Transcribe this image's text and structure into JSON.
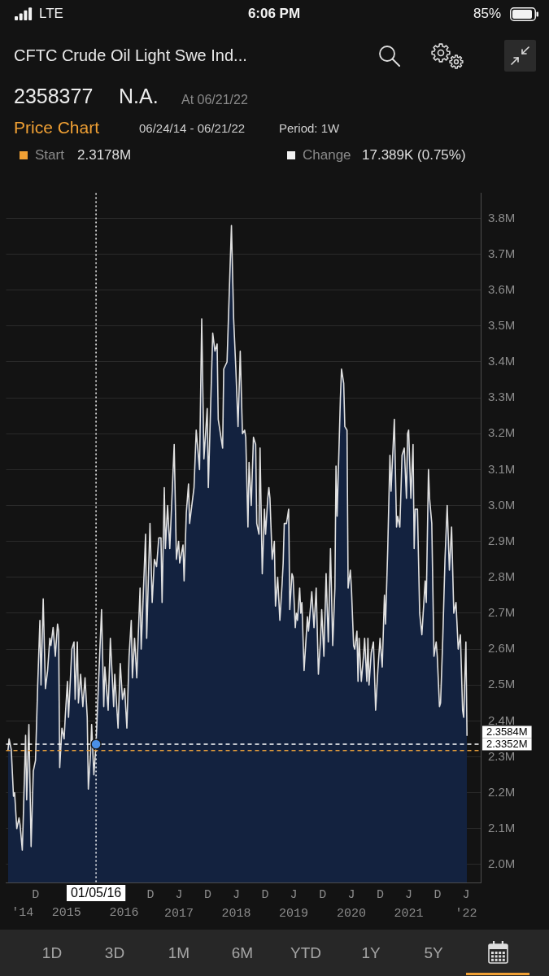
{
  "chart_data": {
    "type": "area",
    "title": "CFTC Crude Oil Light Swe Ind...",
    "subtitle": "Price Chart",
    "annotations": [
      "LTE",
      "6:06 PM",
      "85%",
      "2358377",
      "N.A.",
      "At 06/21/22",
      "06/24/14 - 06/21/22",
      "Period: 1W",
      "Start",
      "2.3178M",
      "Change",
      "17.389K (0.75%)",
      "1D",
      "3D",
      "1M",
      "6M",
      "YTD",
      "1Y",
      "5Y"
    ],
    "xlim": [
      "2014-06-12",
      "2022-09-16"
    ],
    "xticks": [
      {
        "value": "2014-12-16",
        "label": "D"
      },
      {
        "value": "2016-12-16",
        "label": "D"
      },
      {
        "value": "2017-06-15",
        "label": "J\n2017"
      },
      {
        "value": "2017-12-16",
        "label": "D"
      },
      {
        "value": "2018-06-15",
        "label": "J\n2018"
      },
      {
        "value": "2018-12-16",
        "label": "D"
      },
      {
        "value": "2019-06-15",
        "label": "J\n2019"
      },
      {
        "value": "2019-12-16",
        "label": "D"
      },
      {
        "value": "2020-06-15",
        "label": "J\n2020"
      },
      {
        "value": "2020-12-16",
        "label": "D"
      },
      {
        "value": "2021-06-15",
        "label": "J\n2021"
      },
      {
        "value": "2021-12-16",
        "label": "D"
      },
      {
        "value": "2022-06-15",
        "label": "J\n'22"
      }
    ],
    "x2lim": [
      "2014-06-12",
      "2022-09-16"
    ],
    "x2ticks": [
      {
        "value": "2014-09-25",
        "label": "'14"
      },
      {
        "value": "2015-07-01",
        "label": "2015"
      },
      {
        "value": "2016-07-01",
        "label": "2016"
      }
    ],
    "ylim": [
      1.95,
      3.87
    ],
    "yticks": [
      {
        "value": 2.0,
        "label": "2.0M"
      },
      {
        "value": 2.1,
        "label": "2.1M"
      },
      {
        "value": 2.2,
        "label": "2.2M"
      },
      {
        "value": 2.3,
        "label": "2.3M"
      },
      {
        "value": 2.4,
        "label": "2.4M"
      },
      {
        "value": 2.5,
        "label": "2.5M"
      },
      {
        "value": 2.6,
        "label": "2.6M"
      },
      {
        "value": 2.7,
        "label": "2.7M"
      },
      {
        "value": 2.8,
        "label": "2.8M"
      },
      {
        "value": 2.9,
        "label": "2.9M"
      },
      {
        "value": 3.0,
        "label": "3.0M"
      },
      {
        "value": 3.1,
        "label": "3.1M"
      },
      {
        "value": 3.2,
        "label": "3.2M"
      },
      {
        "value": 3.3,
        "label": "3.3M"
      },
      {
        "value": 3.4,
        "label": "3.4M"
      },
      {
        "value": 3.5,
        "label": "3.5M"
      },
      {
        "value": 3.6,
        "label": "3.6M"
      },
      {
        "value": 3.7,
        "label": "3.7M"
      },
      {
        "value": 3.8,
        "label": "3.8M"
      }
    ],
    "grid": "y",
    "series": [
      {
        "color": "#13223f",
        "x": [
          "2014-06-24",
          "2014-07-01",
          "2014-07-15",
          "2014-07-29",
          "2014-08-05",
          "2014-08-19",
          "2014-09-02",
          "2014-09-09",
          "2014-09-23",
          "2014-09-30",
          "2014-10-14",
          "2014-10-21",
          "2014-11-04",
          "2014-11-18",
          "2014-12-02",
          "2014-12-16",
          "2014-12-30",
          "2015-01-13",
          "2015-01-20",
          "2015-02-03",
          "2015-02-17",
          "2015-03-03",
          "2015-03-17",
          "2015-03-24",
          "2015-04-07",
          "2015-04-21",
          "2015-05-05",
          "2015-05-12",
          "2015-05-19",
          "2015-06-02",
          "2015-06-16",
          "2015-06-23",
          "2015-07-07",
          "2015-07-14",
          "2015-08-04",
          "2015-08-18",
          "2015-08-25",
          "2015-09-08",
          "2015-09-15",
          "2015-09-29",
          "2015-10-13",
          "2015-10-27",
          "2015-11-10",
          "2015-11-17",
          "2015-12-01",
          "2015-12-08",
          "2015-12-22",
          "2016-01-05",
          "2016-02-09",
          "2016-02-23",
          "2016-03-01",
          "2016-03-22",
          "2016-04-05",
          "2016-04-26",
          "2016-05-03",
          "2016-05-24",
          "2016-06-07",
          "2016-06-21",
          "2016-07-05",
          "2016-07-19",
          "2016-08-02",
          "2016-08-16",
          "2016-08-23",
          "2016-09-06",
          "2016-09-20",
          "2016-09-27",
          "2016-10-11",
          "2016-10-18",
          "2016-11-15",
          "2016-11-22",
          "2016-12-13",
          "2016-12-27",
          "2017-01-10",
          "2017-01-24",
          "2017-02-07",
          "2017-02-21",
          "2017-02-28",
          "2017-03-14",
          "2017-03-21",
          "2017-04-04",
          "2017-04-18",
          "2017-05-16",
          "2017-05-30",
          "2017-06-13",
          "2017-06-20",
          "2017-07-11",
          "2017-07-18",
          "2017-08-01",
          "2017-08-15",
          "2017-08-22",
          "2017-09-19",
          "2017-10-03",
          "2017-10-24",
          "2017-11-07",
          "2017-11-21",
          "2017-12-12",
          "2017-12-19",
          "2018-01-16",
          "2018-01-30",
          "2018-02-13",
          "2018-02-20",
          "2018-03-20",
          "2018-03-27",
          "2018-04-17",
          "2018-05-15",
          "2018-05-29",
          "2018-06-12",
          "2018-06-26",
          "2018-07-10",
          "2018-07-24",
          "2018-08-07",
          "2018-08-14",
          "2018-08-28",
          "2018-09-04",
          "2018-09-18",
          "2018-10-02",
          "2018-10-16",
          "2018-10-23",
          "2018-11-06",
          "2018-11-13",
          "2018-11-27",
          "2018-12-11",
          "2018-12-18",
          "2019-01-01",
          "2019-01-08",
          "2019-01-15",
          "2019-01-29",
          "2019-02-12",
          "2019-02-19",
          "2019-03-05",
          "2019-03-19",
          "2019-04-02",
          "2019-04-09",
          "2019-04-16",
          "2019-04-30",
          "2019-05-14",
          "2019-05-21",
          "2019-06-04",
          "2019-06-11",
          "2019-06-25",
          "2019-07-02",
          "2019-07-09",
          "2019-07-23",
          "2019-07-30",
          "2019-08-06",
          "2019-08-20",
          "2019-09-10",
          "2019-09-17",
          "2019-10-08",
          "2019-10-22",
          "2019-11-05",
          "2019-11-19",
          "2019-12-03",
          "2019-12-10",
          "2019-12-24",
          "2020-01-07",
          "2020-01-21",
          "2020-02-04",
          "2020-02-18",
          "2020-03-03",
          "2020-03-10",
          "2020-03-17",
          "2020-04-07",
          "2020-04-14",
          "2020-04-28",
          "2020-05-05",
          "2020-05-19",
          "2020-05-26",
          "2020-06-09",
          "2020-06-16",
          "2020-06-30",
          "2020-07-07",
          "2020-07-21",
          "2020-07-28",
          "2020-08-04",
          "2020-08-18",
          "2020-09-01",
          "2020-09-08",
          "2020-09-22",
          "2020-09-29",
          "2020-10-06",
          "2020-10-20",
          "2020-11-03",
          "2020-11-17",
          "2020-12-01",
          "2020-12-15",
          "2020-12-29",
          "2021-01-12",
          "2021-01-19",
          "2021-02-02",
          "2021-02-16",
          "2021-02-23",
          "2021-03-16",
          "2021-03-30",
          "2021-04-06",
          "2021-04-20",
          "2021-05-04",
          "2021-05-18",
          "2021-06-01",
          "2021-06-08",
          "2021-06-15",
          "2021-06-29",
          "2021-07-13",
          "2021-07-20",
          "2021-07-27",
          "2021-08-10",
          "2021-08-24",
          "2021-09-07",
          "2021-09-28",
          "2021-10-05",
          "2021-10-19",
          "2021-10-26",
          "2021-11-09",
          "2021-11-23",
          "2021-12-07",
          "2021-12-14",
          "2021-12-28",
          "2022-01-04",
          "2022-01-18",
          "2022-02-01",
          "2022-02-15",
          "2022-03-01",
          "2022-03-15",
          "2022-03-29",
          "2022-04-12",
          "2022-04-26",
          "2022-05-10",
          "2022-05-24",
          "2022-05-31",
          "2022-06-14",
          "2022-06-21"
        ],
        "values": [
          2.3178,
          2.35,
          2.32,
          2.19,
          2.2,
          2.1,
          2.13,
          2.11,
          2.04,
          2.14,
          2.36,
          2.18,
          2.39,
          2.05,
          2.26,
          2.29,
          2.5,
          2.68,
          2.5,
          2.74,
          2.49,
          2.54,
          2.63,
          2.61,
          2.66,
          2.58,
          2.67,
          2.65,
          2.27,
          2.38,
          2.35,
          2.41,
          2.51,
          2.41,
          2.6,
          2.62,
          2.46,
          2.62,
          2.45,
          2.53,
          2.44,
          2.52,
          2.41,
          2.21,
          2.31,
          2.39,
          2.25,
          2.3352,
          2.71,
          2.44,
          2.55,
          2.43,
          2.63,
          2.44,
          2.53,
          2.38,
          2.56,
          2.46,
          2.49,
          2.38,
          2.58,
          2.68,
          2.52,
          2.63,
          2.52,
          2.61,
          2.77,
          2.6,
          2.92,
          2.63,
          2.95,
          2.73,
          2.85,
          2.83,
          2.91,
          2.91,
          2.73,
          3.05,
          2.88,
          3.0,
          2.88,
          3.17,
          2.85,
          2.9,
          2.84,
          2.89,
          2.79,
          2.98,
          3.06,
          2.95,
          3.05,
          3.21,
          3.1,
          3.52,
          3.13,
          3.27,
          3.05,
          3.48,
          3.43,
          3.45,
          3.24,
          3.16,
          3.38,
          3.4,
          3.78,
          3.52,
          3.38,
          3.22,
          3.43,
          3.2,
          3.21,
          3.19,
          2.94,
          3.12,
          3.0,
          3.19,
          3.17,
          2.95,
          2.92,
          3.16,
          2.81,
          2.99,
          2.92,
          3.02,
          3.05,
          3.02,
          2.85,
          2.9,
          2.72,
          2.8,
          2.68,
          2.78,
          2.84,
          2.95,
          2.95,
          2.99,
          2.71,
          2.81,
          2.8,
          2.66,
          2.7,
          2.68,
          2.77,
          2.7,
          2.73,
          2.54,
          2.69,
          2.65,
          2.76,
          2.66,
          2.77,
          2.53,
          2.63,
          2.71,
          2.58,
          2.81,
          2.62,
          2.88,
          2.61,
          2.77,
          3.11,
          2.97,
          3.3,
          3.38,
          3.34,
          3.22,
          3.21,
          2.77,
          2.82,
          2.77,
          2.61,
          2.6,
          2.65,
          2.51,
          2.63,
          2.51,
          2.58,
          2.63,
          2.51,
          2.63,
          2.5,
          2.59,
          2.62,
          2.43,
          2.54,
          2.63,
          2.55,
          2.75,
          2.67,
          2.88,
          3.14,
          3.04,
          3.24,
          2.94,
          2.97,
          2.94,
          3.14,
          3.16,
          3.02,
          3.2,
          3.21,
          3.02,
          3.17,
          2.88,
          2.99,
          2.99,
          2.7,
          2.64,
          2.79,
          2.73,
          3.1,
          3.02,
          2.95,
          2.58,
          2.62,
          2.58,
          2.44,
          2.45,
          2.63,
          2.85,
          3.0,
          2.82,
          2.94,
          2.7,
          2.73,
          2.6,
          2.64,
          2.43,
          2.41,
          2.62,
          2.3584
        ],
        "value_labels": [
          null,
          null,
          null,
          null,
          null,
          null,
          null,
          null,
          null,
          null,
          null,
          null,
          null,
          null,
          null,
          null,
          null,
          null,
          null,
          null,
          null,
          null,
          null,
          null,
          null,
          null,
          null,
          null,
          null,
          null,
          null,
          null,
          null,
          null,
          null,
          null,
          null,
          null,
          null,
          null,
          null,
          null,
          null,
          null,
          null,
          null,
          null,
          null,
          null,
          null,
          null,
          null,
          null,
          null,
          null,
          null,
          null,
          null,
          null,
          null,
          null,
          null,
          null,
          null,
          null,
          null,
          null,
          null,
          null,
          null,
          null,
          null,
          null,
          null,
          null,
          null,
          null,
          null,
          null,
          null,
          null,
          null,
          null,
          null,
          null,
          null,
          null,
          null,
          null,
          null,
          null,
          null,
          null,
          null,
          null,
          null,
          null,
          null,
          null,
          null,
          null,
          null,
          null,
          null,
          null,
          null,
          null,
          null,
          null,
          null,
          null,
          null,
          null,
          null,
          null,
          null,
          null,
          null,
          null,
          null,
          null,
          null,
          null,
          null,
          null,
          null,
          null,
          null,
          null,
          null,
          null,
          null,
          null,
          null,
          null,
          null,
          null,
          null,
          null,
          null,
          null,
          null,
          null,
          null,
          null,
          null,
          null,
          null,
          null,
          null,
          null,
          null,
          null,
          null,
          null,
          null,
          null,
          null,
          null,
          null,
          null,
          null,
          null,
          null,
          null,
          null,
          null,
          null,
          null,
          null,
          null,
          null,
          null,
          null,
          null,
          null,
          null,
          null,
          null,
          null,
          null,
          null,
          null,
          null,
          null,
          null,
          null,
          null,
          null,
          null,
          null,
          null,
          null,
          null,
          null,
          null,
          null,
          null,
          null,
          null,
          null,
          null,
          null,
          null,
          null,
          null,
          null,
          null,
          null,
          null,
          null,
          null,
          null,
          null,
          null,
          null,
          null,
          null,
          null,
          null,
          null,
          null,
          null,
          null,
          null,
          null,
          null,
          null,
          null,
          null,
          "2.3584M"
        ]
      },
      {
        "type": "scatter",
        "color": "#4a8fe6",
        "marker": "circle",
        "x": [
          "2016-01-05"
        ],
        "values": [
          2.3352
        ]
      }
    ],
    "ref_lines": [
      {
        "axis": "x",
        "value": "2016-01-05",
        "label": "01/05/16",
        "line_style": "dotted",
        "color": "#ffffff"
      },
      {
        "axis": "y",
        "value": 2.3352,
        "label": "2.3352M",
        "line_style": "dashed",
        "color": "#ffffff"
      },
      {
        "axis": "y",
        "value": 2.3178,
        "line_style": "dashed",
        "color": "#e9a03c"
      }
    ]
  }
}
